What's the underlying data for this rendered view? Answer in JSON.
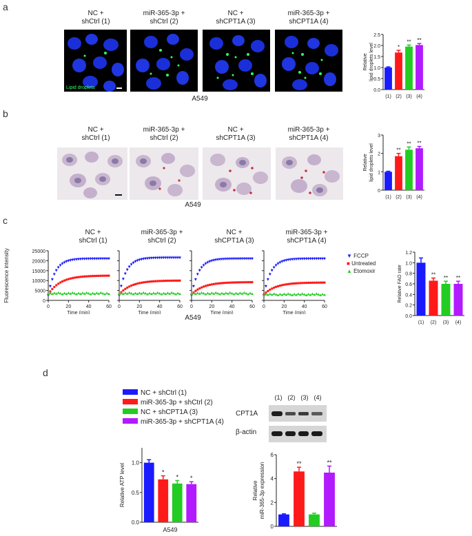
{
  "groups": {
    "g1": [
      "NC +",
      "shCtrl (1)"
    ],
    "g2": [
      "miR-365-3p +",
      "shCtrl (2)"
    ],
    "g3": [
      "NC +",
      "shCPT1A (3)"
    ],
    "g4": [
      "miR-365-3p +",
      "shCPT1A (4)"
    ]
  },
  "cell_line": "A549",
  "colors": {
    "g1": "#1a1aff",
    "g2": "#ff1a1a",
    "g3": "#22cc22",
    "g4": "#b21aff",
    "fccp": "#1a1aff",
    "untreated": "#ff1a1a",
    "etomoxir": "#22cc22"
  },
  "panel_a": {
    "label": "a",
    "scalebar_text": "Lipid droplets"
  },
  "panel_b": {
    "label": "b"
  },
  "panel_c": {
    "label": "c"
  },
  "panel_d": {
    "label": "d",
    "legend": [
      "NC + shCtrl (1)",
      "miR-365-3p + shCtrl (2)",
      "NC + shCPT1A (3)",
      "miR-365-3p + shCPT1A (4)"
    ],
    "blot": {
      "lanes": [
        "(1)",
        "(2)",
        "(3)",
        "(4)"
      ],
      "rows": [
        "CPT1A",
        "β-actin"
      ]
    }
  },
  "chart_data": [
    {
      "id": "a_bar",
      "type": "bar",
      "categories": [
        "(1)",
        "(2)",
        "(3)",
        "(4)"
      ],
      "values": [
        1.0,
        1.68,
        1.95,
        2.02
      ],
      "errors": [
        0.03,
        0.1,
        0.07,
        0.07
      ],
      "sig": [
        "",
        "*",
        "**",
        "**"
      ],
      "ylabel": "Relative lipid droplets level",
      "ylim": [
        0,
        2.5
      ],
      "yticks": [
        "0.0",
        "0.5",
        "1.0",
        "1.5",
        "2.0",
        "2.5"
      ],
      "yticks_v": [
        0,
        0.5,
        1.0,
        1.5,
        2.0,
        2.5
      ]
    },
    {
      "id": "b_bar",
      "type": "bar",
      "categories": [
        "(1)",
        "(2)",
        "(3)",
        "(4)"
      ],
      "values": [
        1.0,
        1.85,
        2.2,
        2.28
      ],
      "errors": [
        0.03,
        0.15,
        0.15,
        0.1
      ],
      "sig": [
        "",
        "**",
        "**",
        "**"
      ],
      "ylabel": "Relative lipid droplets level",
      "ylim": [
        0,
        3
      ],
      "yticks": [
        "0",
        "1",
        "2",
        "3"
      ],
      "yticks_v": [
        0,
        1,
        2,
        3
      ]
    },
    {
      "id": "c_lines",
      "type": "scatter",
      "xlabel": "Time (min)",
      "ylabel": "Fluorescence intensity",
      "xlim": [
        0,
        60
      ],
      "ylim": [
        0,
        25000
      ],
      "xticks": [
        "0",
        "20",
        "40",
        "60"
      ],
      "xticks_v": [
        0,
        20,
        40,
        60
      ],
      "yticks": [
        "0",
        "5000",
        "10000",
        "15000",
        "20000",
        "25000"
      ],
      "yticks_v": [
        0,
        5000,
        10000,
        15000,
        20000,
        25000
      ],
      "legend": [
        "FCCP",
        "Untreated",
        "Etomoxir"
      ],
      "fccp_plateau": [
        21000,
        21500,
        21000,
        21000
      ],
      "untreated_plateau": [
        12500,
        10000,
        9200,
        9000
      ],
      "etomoxir_level": [
        3500,
        3500,
        3500,
        3000
      ]
    },
    {
      "id": "c_bar",
      "type": "bar",
      "categories": [
        "(1)",
        "(2)",
        "(3)",
        "(4)"
      ],
      "values": [
        1.0,
        0.66,
        0.6,
        0.6
      ],
      "errors": [
        0.09,
        0.05,
        0.05,
        0.05
      ],
      "sig": [
        "",
        "**",
        "**",
        "**"
      ],
      "ylabel": "Relative FAO rate",
      "ylim": [
        0,
        1.2
      ],
      "yticks": [
        "0.0",
        "0.2",
        "0.4",
        "0.6",
        "0.8",
        "1.0",
        "1.2"
      ],
      "yticks_v": [
        0,
        0.2,
        0.4,
        0.6,
        0.8,
        1.0,
        1.2
      ]
    },
    {
      "id": "d_atp",
      "type": "bar",
      "categories": [
        "(1)",
        "(2)",
        "(3)",
        "(4)"
      ],
      "values": [
        1.0,
        0.72,
        0.65,
        0.64
      ],
      "errors": [
        0.05,
        0.06,
        0.05,
        0.04
      ],
      "sig": [
        "",
        "*",
        "*",
        "*"
      ],
      "ylabel": "Relative ATP level",
      "ylim": [
        0,
        1.25
      ],
      "yticks": [
        "0.0",
        "0.5",
        "1.0"
      ],
      "yticks_v": [
        0,
        0.5,
        1.0
      ],
      "xlabel": "A549"
    },
    {
      "id": "d_mir",
      "type": "bar",
      "categories": [
        "(1)",
        "(2)",
        "(3)",
        "(4)"
      ],
      "values": [
        1.0,
        4.6,
        1.0,
        4.5
      ],
      "errors": [
        0.05,
        0.35,
        0.1,
        0.55
      ],
      "sig": [
        "",
        "**",
        "",
        "**"
      ],
      "ylabel": "Relative miR-365-3p expression",
      "ylim": [
        0,
        6
      ],
      "yticks": [
        "0",
        "2",
        "4",
        "6"
      ],
      "yticks_v": [
        0,
        2,
        4,
        6
      ]
    }
  ]
}
